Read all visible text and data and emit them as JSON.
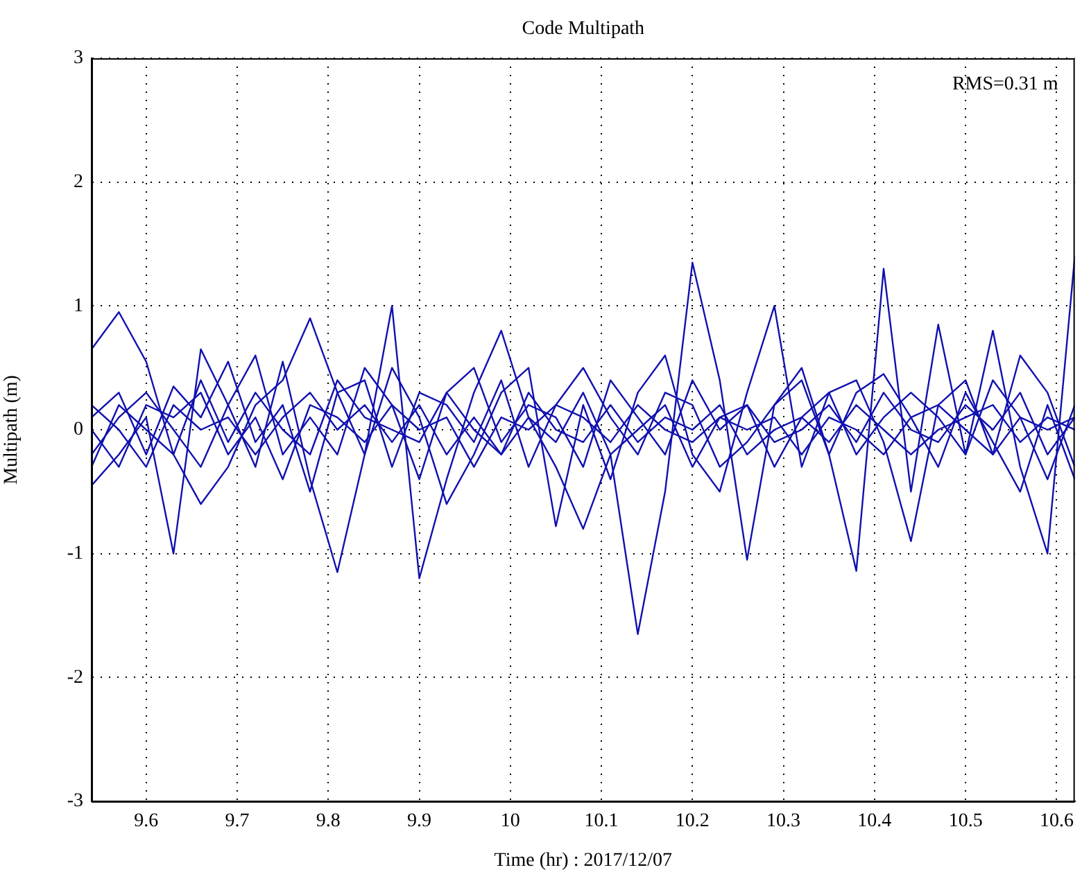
{
  "chart_data": {
    "type": "line",
    "title": "Code Multipath",
    "xlabel": "Time (hr) : 2017/12/07",
    "ylabel": "Multipath (m)",
    "annotations": [
      "RMS=0.31 m"
    ],
    "x": [
      9.54,
      9.57,
      9.6,
      9.63,
      9.66,
      9.69,
      9.72,
      9.75,
      9.78,
      9.81,
      9.84,
      9.87,
      9.9,
      9.93,
      9.96,
      9.99,
      10.02,
      10.05,
      10.08,
      10.11,
      10.14,
      10.17,
      10.2,
      10.23,
      10.26,
      10.29,
      10.32,
      10.35,
      10.38,
      10.41,
      10.44,
      10.47,
      10.5,
      10.53,
      10.56,
      10.59,
      10.62
    ],
    "series": [
      {
        "color": "#1010b0",
        "values": [
          0.65,
          0.95,
          0.55,
          -0.2,
          -0.6,
          -0.3,
          0.2,
          0.4,
          0.9,
          0.3,
          -0.2,
          1.0,
          -1.2,
          -0.4,
          0.3,
          0.8,
          0.1,
          -0.3,
          -0.8,
          -0.2,
          -1.65,
          -0.5,
          1.35,
          0.4,
          -1.05,
          0.2,
          0.5,
          -0.2,
          -1.14,
          1.3,
          -0.5,
          0.85,
          -0.2,
          0.8,
          -0.3,
          -1.0,
          1.4
        ]
      },
      {
        "color": "#1010b0",
        "values": [
          -0.45,
          -0.2,
          0.1,
          -1.0,
          0.65,
          0.2,
          -0.3,
          0.55,
          -0.4,
          -1.15,
          -0.2,
          0.5,
          0.1,
          -0.6,
          -0.2,
          0.3,
          0.5,
          -0.78,
          0.2,
          -0.4,
          0.3,
          0.6,
          -0.2,
          -0.5,
          0.3,
          1.0,
          -0.3,
          0.3,
          0.4,
          -0.1,
          -0.9,
          0.2,
          0.4,
          -0.2,
          0.6,
          0.3,
          -0.3
        ]
      },
      {
        "color": "#1010b0",
        "values": [
          0.1,
          0.3,
          -0.2,
          0.35,
          0.1,
          0.55,
          -0.1,
          0.2,
          -0.5,
          0.3,
          0.4,
          -0.3,
          0.3,
          0.2,
          -0.1,
          0.4,
          -0.3,
          0.2,
          0.5,
          0.1,
          -0.2,
          0.3,
          0.2,
          -0.3,
          -0.1,
          0.2,
          0.4,
          -0.2,
          0.3,
          0.45,
          0.1,
          -0.3,
          0.3,
          -0.1,
          -0.5,
          0.2,
          -0.4
        ]
      },
      {
        "color": "#1010b0",
        "values": [
          -0.2,
          0.1,
          0.3,
          0.0,
          -0.3,
          0.2,
          0.6,
          -0.2,
          0.1,
          -0.2,
          0.5,
          0.2,
          -0.4,
          0.3,
          0.5,
          -0.1,
          0.2,
          0.1,
          -0.3,
          0.4,
          0.1,
          -0.2,
          0.4,
          0.0,
          0.2,
          -0.3,
          0.1,
          0.3,
          -0.2,
          0.1,
          0.3,
          0.1,
          -0.2,
          0.4,
          0.1,
          -0.4,
          0.2
        ]
      },
      {
        "color": "#1010b0",
        "values": [
          0.0,
          -0.3,
          0.2,
          0.1,
          0.3,
          -0.2,
          0.1,
          -0.4,
          0.2,
          0.1,
          -0.1,
          0.2,
          0.0,
          0.1,
          -0.3,
          0.1,
          0.0,
          0.2,
          0.1,
          -0.1,
          0.2,
          0.0,
          -0.1,
          0.1,
          0.0,
          0.1,
          -0.2,
          0.1,
          0.0,
          -0.2,
          0.1,
          0.2,
          0.0,
          -0.2,
          0.1,
          0.0,
          0.1
        ]
      },
      {
        "color": "#1010b0",
        "values": [
          0.2,
          0.0,
          -0.3,
          0.2,
          0.0,
          0.1,
          -0.2,
          0.1,
          0.3,
          0.0,
          0.2,
          -0.1,
          0.2,
          -0.2,
          0.1,
          -0.2,
          0.3,
          0.0,
          -0.1,
          0.2,
          -0.1,
          0.1,
          0.0,
          0.2,
          -0.2,
          0.0,
          0.1,
          -0.1,
          0.2,
          0.0,
          -0.2,
          0.0,
          0.1,
          0.2,
          -0.1,
          0.1,
          0.0
        ]
      },
      {
        "color": "#1010b0",
        "values": [
          -0.3,
          0.2,
          0.0,
          -0.2,
          0.4,
          -0.1,
          0.3,
          0.0,
          -0.2,
          0.4,
          0.1,
          0.0,
          -0.1,
          0.3,
          0.0,
          -0.2,
          0.1,
          -0.1,
          0.3,
          -0.2,
          0.0,
          0.2,
          -0.3,
          0.1,
          0.2,
          -0.1,
          0.0,
          0.2,
          -0.1,
          0.3,
          0.0,
          -0.1,
          0.2,
          0.0,
          0.3,
          -0.2,
          0.1
        ]
      }
    ],
    "xlim": [
      9.54,
      10.62
    ],
    "xticks": [
      9.6,
      9.7,
      9.8,
      9.9,
      10,
      10.1,
      10.2,
      10.3,
      10.4,
      10.5,
      10.6
    ],
    "ylim": [
      -3,
      3
    ],
    "yticks": [
      -3,
      -2,
      -1,
      0,
      1,
      2,
      3
    ],
    "grid": true,
    "legend": false,
    "marker": "none",
    "line_style": "solid"
  }
}
